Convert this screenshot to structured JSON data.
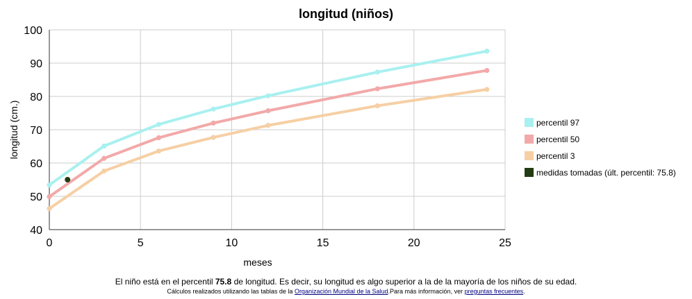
{
  "chart_data": {
    "type": "line",
    "title": "longitud (niños)",
    "xlabel": "meses",
    "ylabel": "longitud (cm.)",
    "xlim": [
      0,
      25
    ],
    "ylim": [
      40,
      100
    ],
    "x_ticks": [
      "0",
      "5",
      "10",
      "15",
      "20",
      "25"
    ],
    "y_ticks": [
      "40",
      "50",
      "60",
      "70",
      "80",
      "90",
      "100"
    ],
    "grid": true,
    "legend_position": "right",
    "series": [
      {
        "name": "percentil 97",
        "color": "#a9f0f0",
        "x": [
          0,
          3,
          6,
          9,
          12,
          18,
          24
        ],
        "values": [
          53.4,
          65.1,
          71.6,
          76.2,
          80.2,
          87.3,
          93.6
        ]
      },
      {
        "name": "percentil 50",
        "color": "#f2a9a9",
        "x": [
          0,
          3,
          6,
          9,
          12,
          18,
          24
        ],
        "values": [
          49.9,
          61.4,
          67.6,
          72.0,
          75.7,
          82.3,
          87.8
        ]
      },
      {
        "name": "percentil 3",
        "color": "#f6cfa4",
        "x": [
          0,
          3,
          6,
          9,
          12,
          18,
          24
        ],
        "values": [
          46.3,
          57.6,
          63.6,
          67.7,
          71.3,
          77.2,
          82.1
        ]
      }
    ],
    "measurements": {
      "name": "medidas tomadas (últ. percentil: 75.8)",
      "color": "#233b12",
      "points": [
        {
          "x": 1,
          "y": 55
        }
      ]
    }
  },
  "footer": {
    "line1_before": "El niño está en el percentil ",
    "line1_value": "75.8",
    "line1_after": " de longitud. Es decir, su longitud es algo superior a la de la mayoría de los niños de su edad.",
    "line2_before": "Cálculos realizados utilizando las tablas de la ",
    "line2_link1": "Organización Mundial de la Salud",
    "line2_middle": ".Para más información, ver ",
    "line2_link2": "preguntas frecuentes",
    "line2_after": "."
  }
}
